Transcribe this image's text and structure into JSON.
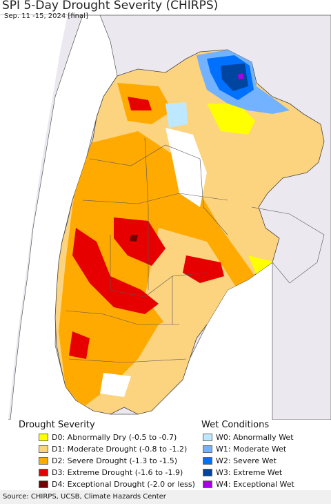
{
  "title": "SPI 5-Day Drought Severity (CHIRPS)",
  "subtitle": "Sep. 11 -15, 2024 [final]",
  "legend": {
    "drought_heading": "Drought Severity",
    "wet_heading": "Wet Conditions",
    "drought": [
      {
        "label": "D0: Abnormally Dry (-0.5 to -0.7)",
        "color": "#ffff00"
      },
      {
        "label": "D1: Moderate Drought (-0.8 to -1.2)",
        "color": "#fcd37f"
      },
      {
        "label": "D2: Severe Drought (-1.3 to -1.5)",
        "color": "#ffaa00"
      },
      {
        "label": "D3: Extreme Drought (-1.6 to -1.9)",
        "color": "#e60000"
      },
      {
        "label": "D4: Exceptional Drought (-2.0 or less)",
        "color": "#730000"
      }
    ],
    "wet": [
      {
        "label": "W0: Abnormally Wet",
        "color": "#bee8ff"
      },
      {
        "label": "W1: Moderate Wet",
        "color": "#73b2ff"
      },
      {
        "label": "W2: Severe Wet",
        "color": "#0070ff"
      },
      {
        "label": "W3: Extreme Wet",
        "color": "#0046a0"
      },
      {
        "label": "W4: Exceptional Wet",
        "color": "#a900e6"
      }
    ]
  },
  "footer": "Source: CHIRPS, UCSB, Climate Hazards Center",
  "colors": {
    "ocean": "#ffffff",
    "neighbor_land": "#ebe8ef",
    "no_drought_land": "#ffffff"
  }
}
